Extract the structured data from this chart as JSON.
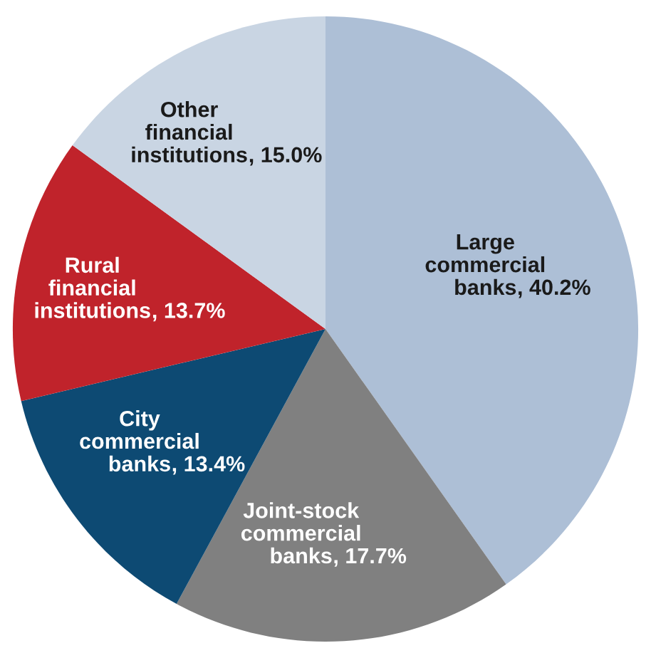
{
  "chart_data": {
    "type": "pie",
    "categories": [
      "Large\ncommercial\nbanks",
      "Joint-stock\ncommercial\nbanks",
      "City\ncommercial\nbanks",
      "Rural\nfinancial\ninstitutions",
      "Other\nfinancial\ninstitutions"
    ],
    "values": [
      40.2,
      17.7,
      13.4,
      13.7,
      15.0
    ],
    "value_labels": [
      ", 40.2%",
      ", 17.7%",
      ", 13.4%",
      ", 13.7%",
      ", 15.0%"
    ],
    "colors": [
      "#adbfd6",
      "#808080",
      "#0d4a73",
      "#c0232b",
      "#c9d5e3"
    ]
  }
}
